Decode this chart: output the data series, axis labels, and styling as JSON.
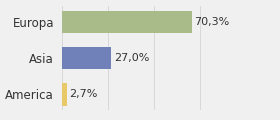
{
  "categories": [
    "America",
    "Asia",
    "Europa"
  ],
  "values": [
    2.7,
    27.0,
    70.3
  ],
  "labels": [
    "2,7%",
    "27,0%",
    "70,3%"
  ],
  "bar_colors": [
    "#e8c96a",
    "#7080b8",
    "#a8bb88"
  ],
  "background_color": "#f0f0f0",
  "xlim": [
    0,
    100
  ],
  "bar_height": 0.62,
  "label_fontsize": 8,
  "tick_fontsize": 8.5,
  "grid_color": "#d8d8d8",
  "grid_xticks": [
    0,
    25,
    50,
    75,
    100
  ]
}
